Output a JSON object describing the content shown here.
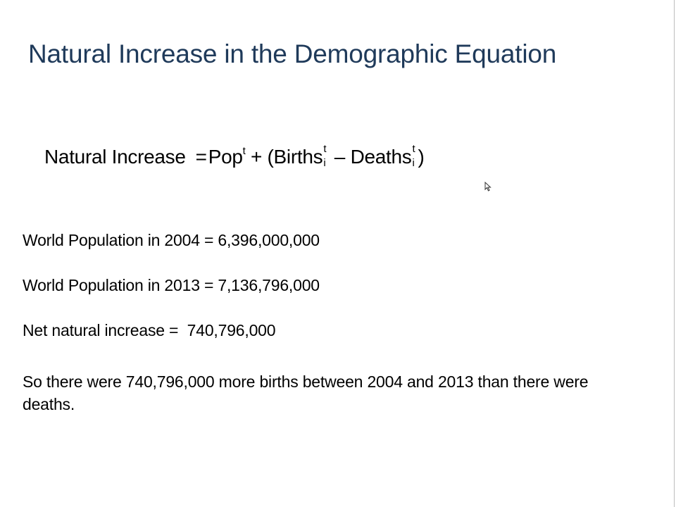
{
  "slide": {
    "title": "Natural Increase in the Demographic Equation",
    "equation": {
      "lhs": "Natural Increase",
      "equals": "=",
      "pop": "Pop",
      "pop_sup": "t",
      "plus_open": " + (",
      "births": "Births",
      "births_sup": "t",
      "births_sub": "i",
      "minus": " – ",
      "deaths": "Deaths",
      "deaths_sup": "t",
      "deaths_sub": "i",
      "close": ")"
    },
    "lines": {
      "pop_2004": "World Population in 2004 = 6,396,000,000",
      "pop_2013": "World Population in 2013 = 7,136,796,000",
      "net_increase": "Net natural increase =  740,796,000"
    },
    "conclusion": "So there were 740,796,000 more births between 2004 and 2013 than there were deaths."
  },
  "colors": {
    "title": "#1f3a5a",
    "text": "#000000",
    "background": "#ffffff"
  },
  "icons": {
    "cursor": "mouse-pointer-icon"
  }
}
